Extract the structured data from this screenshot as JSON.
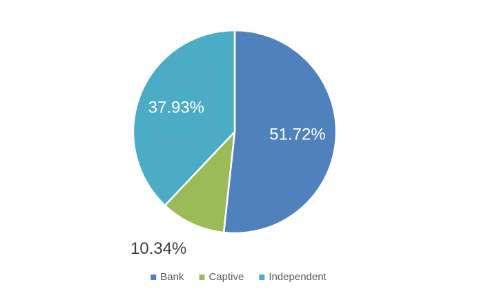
{
  "chart_data": {
    "type": "pie",
    "categories": [
      "Bank",
      "Captive",
      "Independent"
    ],
    "values": [
      51.72,
      10.34,
      37.93
    ],
    "value_labels": [
      "51.72%",
      "10.34%",
      "37.93%"
    ],
    "colors": [
      "#4f81bd",
      "#9bbb59",
      "#4bacc6"
    ],
    "legend": "bottom"
  }
}
